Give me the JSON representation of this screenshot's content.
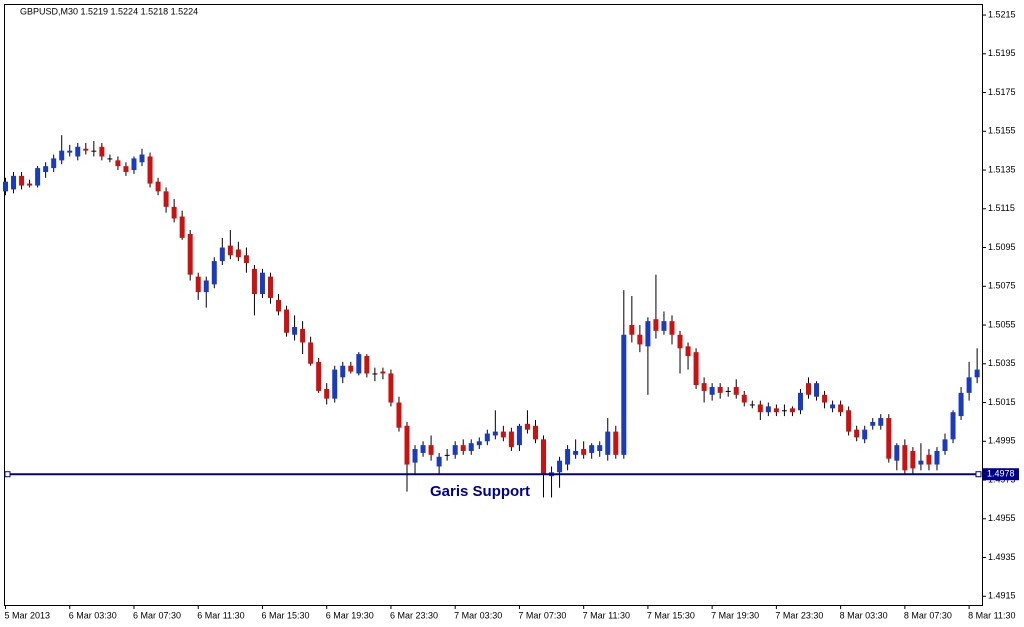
{
  "chart_data": {
    "type": "candlestick",
    "title": "GBPUSD,M30  1.5219 1.5224 1.5218 1.5224",
    "categories": [
      "5 Mar 2013",
      null,
      null,
      null,
      null,
      null,
      null,
      null,
      "6 Mar 03:30",
      null,
      null,
      null,
      null,
      null,
      null,
      null,
      "6 Mar 07:30",
      null,
      null,
      null,
      null,
      null,
      null,
      null,
      "6 Mar 11:30",
      null,
      null,
      null,
      null,
      null,
      null,
      null,
      "6 Mar 15:30",
      null,
      null,
      null,
      null,
      null,
      null,
      null,
      "6 Mar 19:30",
      null,
      null,
      null,
      null,
      null,
      null,
      null,
      "6 Mar 23:30",
      null,
      null,
      null,
      null,
      null,
      null,
      null,
      "7 Mar 03:30",
      null,
      null,
      null,
      null,
      null,
      null,
      null,
      "7 Mar 07:30",
      null,
      null,
      null,
      null,
      null,
      null,
      null,
      "7 Mar 11:30",
      null,
      null,
      null,
      null,
      null,
      null,
      null,
      "7 Mar 15:30",
      null,
      null,
      null,
      null,
      null,
      null,
      null,
      "7 Mar 19:30",
      null,
      null,
      null,
      null,
      null,
      null,
      null,
      "7 Mar 23:30",
      null,
      null,
      null,
      null,
      null,
      null,
      null,
      "8 Mar 03:30",
      null,
      null,
      null,
      null,
      null,
      null,
      null,
      "8 Mar 07:30",
      null,
      null,
      null,
      null,
      null,
      null,
      null,
      "8 Mar 11:30",
      null
    ],
    "open": [
      1.5124,
      1.5125,
      1.5132,
      1.5128,
      1.5127,
      1.5134,
      1.5136,
      1.514,
      1.5144,
      1.5142,
      1.5146,
      1.5145,
      1.5147,
      1.5141,
      1.514,
      1.5137,
      1.5135,
      1.5139,
      1.5142,
      1.5129,
      1.5124,
      1.5116,
      1.5111,
      1.5102,
      1.508,
      1.5072,
      1.5076,
      1.5088,
      1.5096,
      1.5094,
      1.5091,
      1.5084,
      1.5071,
      1.508,
      1.5068,
      1.5063,
      1.505,
      1.5053,
      1.5046,
      1.5036,
      1.5022,
      1.5017,
      1.5028,
      1.5034,
      1.503,
      1.5039,
      1.503,
      1.5031,
      1.503,
      1.5015,
      1.5003,
      1.4984,
      1.4989,
      1.4993,
      1.4982,
      1.4988,
      1.4988,
      1.4993,
      1.499,
      1.4993,
      1.4995,
      1.4998,
      1.5,
      1.5,
      1.4993,
      1.5004,
      1.5003,
      1.4996,
      1.4977,
      1.4979,
      1.4983,
      1.4988,
      1.4991,
      1.4989,
      1.499,
      1.4988,
      1.5,
      1.4988,
      1.5055,
      1.505,
      1.5044,
      1.5058,
      1.5052,
      1.5057,
      1.505,
      1.5044,
      1.5041,
      1.5025,
      1.5019,
      1.5023,
      1.5021,
      1.5023,
      1.5019,
      1.5014,
      1.5014,
      1.501,
      1.5012,
      1.5011,
      1.5012,
      1.5011,
      1.5025,
      1.5018,
      1.5019,
      1.5012,
      1.5014,
      1.5011,
      1.5001,
      1.4996,
      1.5003,
      1.5003,
      1.5007,
      1.4985,
      1.4993,
      1.499,
      1.4983,
      1.4988,
      1.4983,
      1.499,
      1.4996,
      1.5008,
      1.502,
      1.5028
    ],
    "high": [
      1.5131,
      1.5134,
      1.5134,
      1.513,
      1.5137,
      1.5139,
      1.5143,
      1.5153,
      1.5148,
      1.5149,
      1.5149,
      1.515,
      1.5149,
      1.5143,
      1.5142,
      1.5139,
      1.5142,
      1.5146,
      1.5144,
      1.5131,
      1.5126,
      1.512,
      1.5114,
      1.5104,
      1.5082,
      1.508,
      1.509,
      1.51,
      1.5104,
      1.5098,
      1.5095,
      1.5086,
      1.5084,
      1.5082,
      1.5071,
      1.5065,
      1.506,
      1.5057,
      1.5049,
      1.5038,
      1.5025,
      1.5034,
      1.5036,
      1.5036,
      1.5041,
      1.504,
      1.5033,
      1.5033,
      1.5032,
      1.5018,
      1.5005,
      1.4993,
      1.4995,
      1.4998,
      1.4989,
      1.4991,
      1.4995,
      1.4996,
      1.4996,
      1.4997,
      1.5001,
      1.5011,
      1.5003,
      1.5002,
      1.5004,
      1.5011,
      1.5006,
      1.4998,
      1.4982,
      1.4987,
      1.4993,
      1.4996,
      1.4995,
      1.4994,
      1.4995,
      1.5007,
      1.5003,
      1.5073,
      1.507,
      1.5055,
      1.5059,
      1.5081,
      1.5062,
      1.506,
      1.5052,
      1.5046,
      1.5043,
      1.5028,
      1.5025,
      1.5025,
      1.5023,
      1.5027,
      1.5021,
      1.5016,
      1.5016,
      1.5015,
      1.5014,
      1.5014,
      1.5013,
      1.5022,
      1.5028,
      1.5026,
      1.5021,
      1.5016,
      1.5016,
      1.5013,
      1.5003,
      1.5003,
      1.5007,
      1.5009,
      1.5009,
      1.4994,
      1.4996,
      1.4992,
      1.4994,
      1.4991,
      1.4992,
      1.4999,
      1.5011,
      1.5023,
      1.5036,
      1.5043
    ],
    "low": [
      1.5122,
      1.5123,
      1.5125,
      1.5126,
      1.5126,
      1.5131,
      1.5134,
      1.5138,
      1.5142,
      1.514,
      1.5143,
      1.5142,
      1.514,
      1.5139,
      1.5135,
      1.5132,
      1.5133,
      1.5137,
      1.5126,
      1.5122,
      1.5113,
      1.5108,
      1.5099,
      1.5078,
      1.5068,
      1.5064,
      1.5074,
      1.5086,
      1.5089,
      1.5088,
      1.5082,
      1.506,
      1.5069,
      1.5066,
      1.506,
      1.5049,
      1.5047,
      1.504,
      1.5034,
      1.502,
      1.5014,
      1.5015,
      1.5025,
      1.503,
      1.5029,
      1.5028,
      1.5026,
      1.5027,
      1.5013,
      1.5,
      1.4969,
      1.4978,
      1.4987,
      1.4985,
      1.4978,
      1.4985,
      1.4986,
      1.4988,
      1.4988,
      1.4991,
      1.4993,
      1.4996,
      1.4995,
      1.499,
      1.499,
      1.4999,
      1.4994,
      1.4966,
      1.4966,
      1.4971,
      1.498,
      1.4986,
      1.4986,
      1.4986,
      1.4987,
      1.4985,
      1.4986,
      1.4986,
      1.5046,
      1.5041,
      1.5019,
      1.5048,
      1.505,
      1.5045,
      1.503,
      1.5032,
      1.5022,
      1.5015,
      1.5016,
      1.5017,
      1.5018,
      1.5017,
      1.5013,
      1.5012,
      1.5006,
      1.5008,
      1.5008,
      1.5008,
      1.5008,
      1.5009,
      1.5017,
      1.5016,
      1.5012,
      1.501,
      1.5008,
      1.4998,
      1.4995,
      1.4994,
      1.5001,
      1.5001,
      1.4984,
      1.498,
      1.4978,
      1.4978,
      1.498,
      1.498,
      1.498,
      1.4988,
      1.4994,
      1.5006,
      1.5016,
      1.5025
    ],
    "close": [
      1.5129,
      1.5132,
      1.5127,
      1.5127,
      1.5136,
      1.5137,
      1.5141,
      1.5145,
      1.5145,
      1.5147,
      1.5145,
      1.5145,
      1.5142,
      1.5141,
      1.5137,
      1.5134,
      1.5141,
      1.5143,
      1.5128,
      1.5124,
      1.5116,
      1.511,
      1.51,
      1.5081,
      1.5072,
      1.5078,
      1.5088,
      1.5095,
      1.5091,
      1.509,
      1.5087,
      1.5071,
      1.5082,
      1.5069,
      1.5062,
      1.5051,
      1.5054,
      1.5046,
      1.5035,
      1.5021,
      1.5017,
      1.5032,
      1.5034,
      1.5031,
      1.504,
      1.503,
      1.503,
      1.503,
      1.5015,
      1.5002,
      1.4983,
      1.4991,
      1.4993,
      1.4988,
      1.4987,
      1.4988,
      1.4993,
      1.499,
      1.4994,
      1.4995,
      1.4999,
      1.5,
      1.4997,
      1.4992,
      1.5003,
      1.5001,
      1.4996,
      1.4978,
      1.4979,
      1.4985,
      1.4991,
      1.499,
      1.4988,
      1.4993,
      1.4993,
      1.5,
      1.4988,
      1.505,
      1.505,
      1.5045,
      1.5057,
      1.5052,
      1.5057,
      1.505,
      1.5043,
      1.5039,
      1.5024,
      1.5021,
      1.5023,
      1.502,
      1.5021,
      1.5019,
      1.5015,
      1.5014,
      1.501,
      1.5013,
      1.501,
      1.5011,
      1.501,
      1.502,
      1.5019,
      1.5025,
      1.5015,
      1.5014,
      1.501,
      1.5,
      1.4997,
      1.5001,
      1.5005,
      1.5007,
      1.4986,
      1.4993,
      1.498,
      1.4981,
      1.4985,
      1.4983,
      1.499,
      1.4996,
      1.501,
      1.502,
      1.5028,
      1.5032
    ],
    "up_color": "#1b3bbf",
    "down_color": "#cc1111",
    "ylim": [
      1.49105,
      1.52207
    ],
    "yticks": [
      1.5215,
      1.5195,
      1.5175,
      1.5155,
      1.5135,
      1.5115,
      1.5095,
      1.5075,
      1.5055,
      1.5035,
      1.5015,
      1.4995,
      1.4975,
      1.4955,
      1.4935,
      1.4915
    ],
    "support": {
      "text": "Garis Support",
      "value": 1.4978,
      "color": "#00008b"
    }
  }
}
